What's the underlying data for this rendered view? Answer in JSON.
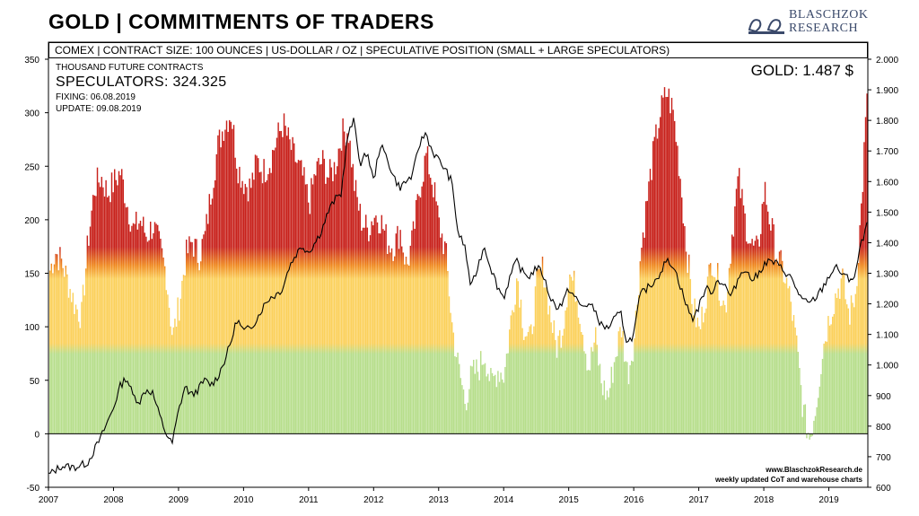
{
  "header": {
    "title": "GOLD | COMMITMENTS OF TRADERS",
    "logo_line1": "BLASCHZOK",
    "logo_line2": "RESEARCH",
    "subtitle": "COMEX  |  CONTRACT SIZE: 100 OUNCES  |  US-DOLLAR / OZ  |  SPECULATIVE  POSITION (SMALL + LARGE SPECULATORS)"
  },
  "info": {
    "units": "THOUSAND FUTURE CONTRACTS",
    "speculators": "SPECULATORS: 324.325",
    "fixing": "FIXING: 06.08.2019",
    "update": "UPDATE: 09.08.2019",
    "gold_price": "GOLD: 1.487 $"
  },
  "footer": {
    "website": "www.BlaschzokResearch.de",
    "tagline": "weekly updated CoT and warehouse charts"
  },
  "colors": {
    "red": "#c8221c",
    "orange": "#f08a1f",
    "yellow": "#fbd15c",
    "green": "#b7de8c",
    "line": "#000000"
  },
  "chart_data": {
    "type": "bar",
    "title": "GOLD | COMMITMENTS OF TRADERS",
    "x_ticks": [
      "2007",
      "2008",
      "2009",
      "2010",
      "2011",
      "2012",
      "2013",
      "2014",
      "2015",
      "2016",
      "2017",
      "2018",
      "2019"
    ],
    "x_range": [
      2007.0,
      2019.6
    ],
    "y_left": {
      "label": "Thousand future contracts",
      "range": [
        -50,
        350
      ],
      "ticks": [
        -50,
        0,
        50,
        100,
        150,
        200,
        250,
        300,
        350
      ]
    },
    "y_right": {
      "label": "US-Dollar / oz",
      "range": [
        600,
        2000
      ],
      "ticks": [
        "600",
        "700",
        "800",
        "900",
        "1.000",
        "1.100",
        "1.200",
        "1.300",
        "1.400",
        "1.500",
        "1.600",
        "1.700",
        "1.800",
        "1.900",
        "2.000"
      ]
    },
    "series": [
      {
        "name": "Speculative position (small + large speculators)",
        "kind": "bar",
        "axis": "left",
        "points": [
          [
            2007.0,
            150
          ],
          [
            2007.1,
            170
          ],
          [
            2007.2,
            160
          ],
          [
            2007.3,
            140
          ],
          [
            2007.4,
            120
          ],
          [
            2007.5,
            110
          ],
          [
            2007.6,
            180
          ],
          [
            2007.7,
            230
          ],
          [
            2007.8,
            240
          ],
          [
            2007.9,
            225
          ],
          [
            2008.0,
            235
          ],
          [
            2008.1,
            245
          ],
          [
            2008.2,
            215
          ],
          [
            2008.3,
            190
          ],
          [
            2008.4,
            200
          ],
          [
            2008.5,
            185
          ],
          [
            2008.6,
            195
          ],
          [
            2008.7,
            175
          ],
          [
            2008.8,
            150
          ],
          [
            2008.9,
            90
          ],
          [
            2009.0,
            120
          ],
          [
            2009.1,
            165
          ],
          [
            2009.2,
            180
          ],
          [
            2009.3,
            165
          ],
          [
            2009.4,
            185
          ],
          [
            2009.5,
            230
          ],
          [
            2009.6,
            270
          ],
          [
            2009.7,
            290
          ],
          [
            2009.8,
            300
          ],
          [
            2009.9,
            250
          ],
          [
            2010.0,
            235
          ],
          [
            2010.1,
            230
          ],
          [
            2010.2,
            255
          ],
          [
            2010.3,
            245
          ],
          [
            2010.4,
            255
          ],
          [
            2010.5,
            275
          ],
          [
            2010.6,
            290
          ],
          [
            2010.7,
            270
          ],
          [
            2010.8,
            255
          ],
          [
            2010.9,
            240
          ],
          [
            2011.0,
            215
          ],
          [
            2011.1,
            245
          ],
          [
            2011.2,
            255
          ],
          [
            2011.3,
            240
          ],
          [
            2011.4,
            250
          ],
          [
            2011.5,
            280
          ],
          [
            2011.6,
            285
          ],
          [
            2011.7,
            230
          ],
          [
            2011.8,
            200
          ],
          [
            2011.9,
            190
          ],
          [
            2012.0,
            205
          ],
          [
            2012.1,
            200
          ],
          [
            2012.2,
            180
          ],
          [
            2012.3,
            175
          ],
          [
            2012.4,
            190
          ],
          [
            2012.5,
            155
          ],
          [
            2012.6,
            185
          ],
          [
            2012.7,
            230
          ],
          [
            2012.8,
            260
          ],
          [
            2012.9,
            235
          ],
          [
            2013.0,
            195
          ],
          [
            2013.1,
            170
          ],
          [
            2013.2,
            100
          ],
          [
            2013.3,
            60
          ],
          [
            2013.4,
            30
          ],
          [
            2013.5,
            55
          ],
          [
            2013.6,
            60
          ],
          [
            2013.7,
            75
          ],
          [
            2013.8,
            45
          ],
          [
            2013.9,
            60
          ],
          [
            2014.0,
            55
          ],
          [
            2014.1,
            105
          ],
          [
            2014.2,
            150
          ],
          [
            2014.3,
            100
          ],
          [
            2014.4,
            85
          ],
          [
            2014.5,
            140
          ],
          [
            2014.6,
            155
          ],
          [
            2014.7,
            115
          ],
          [
            2014.8,
            80
          ],
          [
            2014.9,
            100
          ],
          [
            2015.0,
            150
          ],
          [
            2015.1,
            135
          ],
          [
            2015.2,
            100
          ],
          [
            2015.3,
            60
          ],
          [
            2015.4,
            90
          ],
          [
            2015.5,
            45
          ],
          [
            2015.6,
            35
          ],
          [
            2015.7,
            70
          ],
          [
            2015.8,
            100
          ],
          [
            2015.9,
            55
          ],
          [
            2016.0,
            90
          ],
          [
            2016.1,
            170
          ],
          [
            2016.2,
            220
          ],
          [
            2016.3,
            265
          ],
          [
            2016.4,
            300
          ],
          [
            2016.5,
            320
          ],
          [
            2016.6,
            300
          ],
          [
            2016.7,
            245
          ],
          [
            2016.8,
            175
          ],
          [
            2016.9,
            120
          ],
          [
            2017.0,
            95
          ],
          [
            2017.1,
            130
          ],
          [
            2017.2,
            165
          ],
          [
            2017.3,
            140
          ],
          [
            2017.4,
            115
          ],
          [
            2017.5,
            185
          ],
          [
            2017.6,
            240
          ],
          [
            2017.7,
            200
          ],
          [
            2017.8,
            175
          ],
          [
            2017.9,
            170
          ],
          [
            2018.0,
            230
          ],
          [
            2018.1,
            195
          ],
          [
            2018.2,
            165
          ],
          [
            2018.3,
            150
          ],
          [
            2018.4,
            125
          ],
          [
            2018.5,
            80
          ],
          [
            2018.6,
            20
          ],
          [
            2018.7,
            -5
          ],
          [
            2018.8,
            30
          ],
          [
            2018.9,
            80
          ],
          [
            2019.0,
            110
          ],
          [
            2019.1,
            130
          ],
          [
            2019.2,
            145
          ],
          [
            2019.3,
            110
          ],
          [
            2019.4,
            130
          ],
          [
            2019.5,
            220
          ],
          [
            2019.55,
            285
          ],
          [
            2019.6,
            324
          ]
        ]
      },
      {
        "name": "Gold price (US-Dollar / oz)",
        "kind": "line",
        "axis": "right",
        "points": [
          [
            2007.0,
            640
          ],
          [
            2007.2,
            670
          ],
          [
            2007.4,
            665
          ],
          [
            2007.6,
            680
          ],
          [
            2007.8,
            760
          ],
          [
            2008.0,
            860
          ],
          [
            2008.1,
            930
          ],
          [
            2008.2,
            960
          ],
          [
            2008.3,
            900
          ],
          [
            2008.4,
            880
          ],
          [
            2008.5,
            920
          ],
          [
            2008.6,
            910
          ],
          [
            2008.7,
            840
          ],
          [
            2008.8,
            780
          ],
          [
            2008.9,
            740
          ],
          [
            2009.0,
            850
          ],
          [
            2009.1,
            930
          ],
          [
            2009.2,
            900
          ],
          [
            2009.3,
            920
          ],
          [
            2009.4,
            950
          ],
          [
            2009.5,
            935
          ],
          [
            2009.6,
            960
          ],
          [
            2009.7,
            1010
          ],
          [
            2009.8,
            1070
          ],
          [
            2009.9,
            1150
          ],
          [
            2010.0,
            1110
          ],
          [
            2010.1,
            1120
          ],
          [
            2010.2,
            1150
          ],
          [
            2010.3,
            1190
          ],
          [
            2010.4,
            1220
          ],
          [
            2010.5,
            1230
          ],
          [
            2010.6,
            1250
          ],
          [
            2010.7,
            1320
          ],
          [
            2010.8,
            1360
          ],
          [
            2010.9,
            1390
          ],
          [
            2011.0,
            1370
          ],
          [
            2011.1,
            1400
          ],
          [
            2011.2,
            1440
          ],
          [
            2011.3,
            1500
          ],
          [
            2011.4,
            1540
          ],
          [
            2011.5,
            1560
          ],
          [
            2011.6,
            1750
          ],
          [
            2011.7,
            1800
          ],
          [
            2011.8,
            1650
          ],
          [
            2011.9,
            1700
          ],
          [
            2012.0,
            1600
          ],
          [
            2012.1,
            1720
          ],
          [
            2012.2,
            1680
          ],
          [
            2012.3,
            1620
          ],
          [
            2012.4,
            1580
          ],
          [
            2012.5,
            1600
          ],
          [
            2012.6,
            1620
          ],
          [
            2012.7,
            1720
          ],
          [
            2012.8,
            1760
          ],
          [
            2012.9,
            1700
          ],
          [
            2013.0,
            1670
          ],
          [
            2013.1,
            1640
          ],
          [
            2013.2,
            1600
          ],
          [
            2013.3,
            1430
          ],
          [
            2013.4,
            1390
          ],
          [
            2013.5,
            1250
          ],
          [
            2013.6,
            1320
          ],
          [
            2013.7,
            1390
          ],
          [
            2013.8,
            1320
          ],
          [
            2013.9,
            1260
          ],
          [
            2014.0,
            1220
          ],
          [
            2014.1,
            1290
          ],
          [
            2014.2,
            1340
          ],
          [
            2014.3,
            1300
          ],
          [
            2014.4,
            1290
          ],
          [
            2014.5,
            1320
          ],
          [
            2014.6,
            1300
          ],
          [
            2014.7,
            1230
          ],
          [
            2014.8,
            1190
          ],
          [
            2014.9,
            1200
          ],
          [
            2015.0,
            1250
          ],
          [
            2015.1,
            1220
          ],
          [
            2015.2,
            1190
          ],
          [
            2015.3,
            1200
          ],
          [
            2015.4,
            1180
          ],
          [
            2015.5,
            1130
          ],
          [
            2015.6,
            1120
          ],
          [
            2015.7,
            1150
          ],
          [
            2015.8,
            1170
          ],
          [
            2015.9,
            1070
          ],
          [
            2016.0,
            1100
          ],
          [
            2016.1,
            1230
          ],
          [
            2016.2,
            1250
          ],
          [
            2016.3,
            1270
          ],
          [
            2016.4,
            1300
          ],
          [
            2016.5,
            1340
          ],
          [
            2016.6,
            1330
          ],
          [
            2016.7,
            1270
          ],
          [
            2016.8,
            1200
          ],
          [
            2016.9,
            1150
          ],
          [
            2017.0,
            1190
          ],
          [
            2017.1,
            1250
          ],
          [
            2017.2,
            1240
          ],
          [
            2017.3,
            1280
          ],
          [
            2017.4,
            1260
          ],
          [
            2017.5,
            1220
          ],
          [
            2017.6,
            1280
          ],
          [
            2017.7,
            1320
          ],
          [
            2017.8,
            1280
          ],
          [
            2017.9,
            1290
          ],
          [
            2018.0,
            1330
          ],
          [
            2018.1,
            1340
          ],
          [
            2018.2,
            1330
          ],
          [
            2018.3,
            1310
          ],
          [
            2018.4,
            1290
          ],
          [
            2018.5,
            1250
          ],
          [
            2018.6,
            1210
          ],
          [
            2018.7,
            1200
          ],
          [
            2018.8,
            1220
          ],
          [
            2018.9,
            1250
          ],
          [
            2019.0,
            1290
          ],
          [
            2019.1,
            1320
          ],
          [
            2019.2,
            1300
          ],
          [
            2019.3,
            1280
          ],
          [
            2019.4,
            1290
          ],
          [
            2019.5,
            1400
          ],
          [
            2019.55,
            1420
          ],
          [
            2019.6,
            1487
          ]
        ]
      }
    ],
    "zones": [
      {
        "name": "green",
        "from": 0,
        "to": 80
      },
      {
        "name": "yellow",
        "from": 80,
        "to": 150
      },
      {
        "name": "orange",
        "from": 150,
        "to": 175
      },
      {
        "name": "red",
        "from": 175,
        "to": 350
      }
    ]
  }
}
